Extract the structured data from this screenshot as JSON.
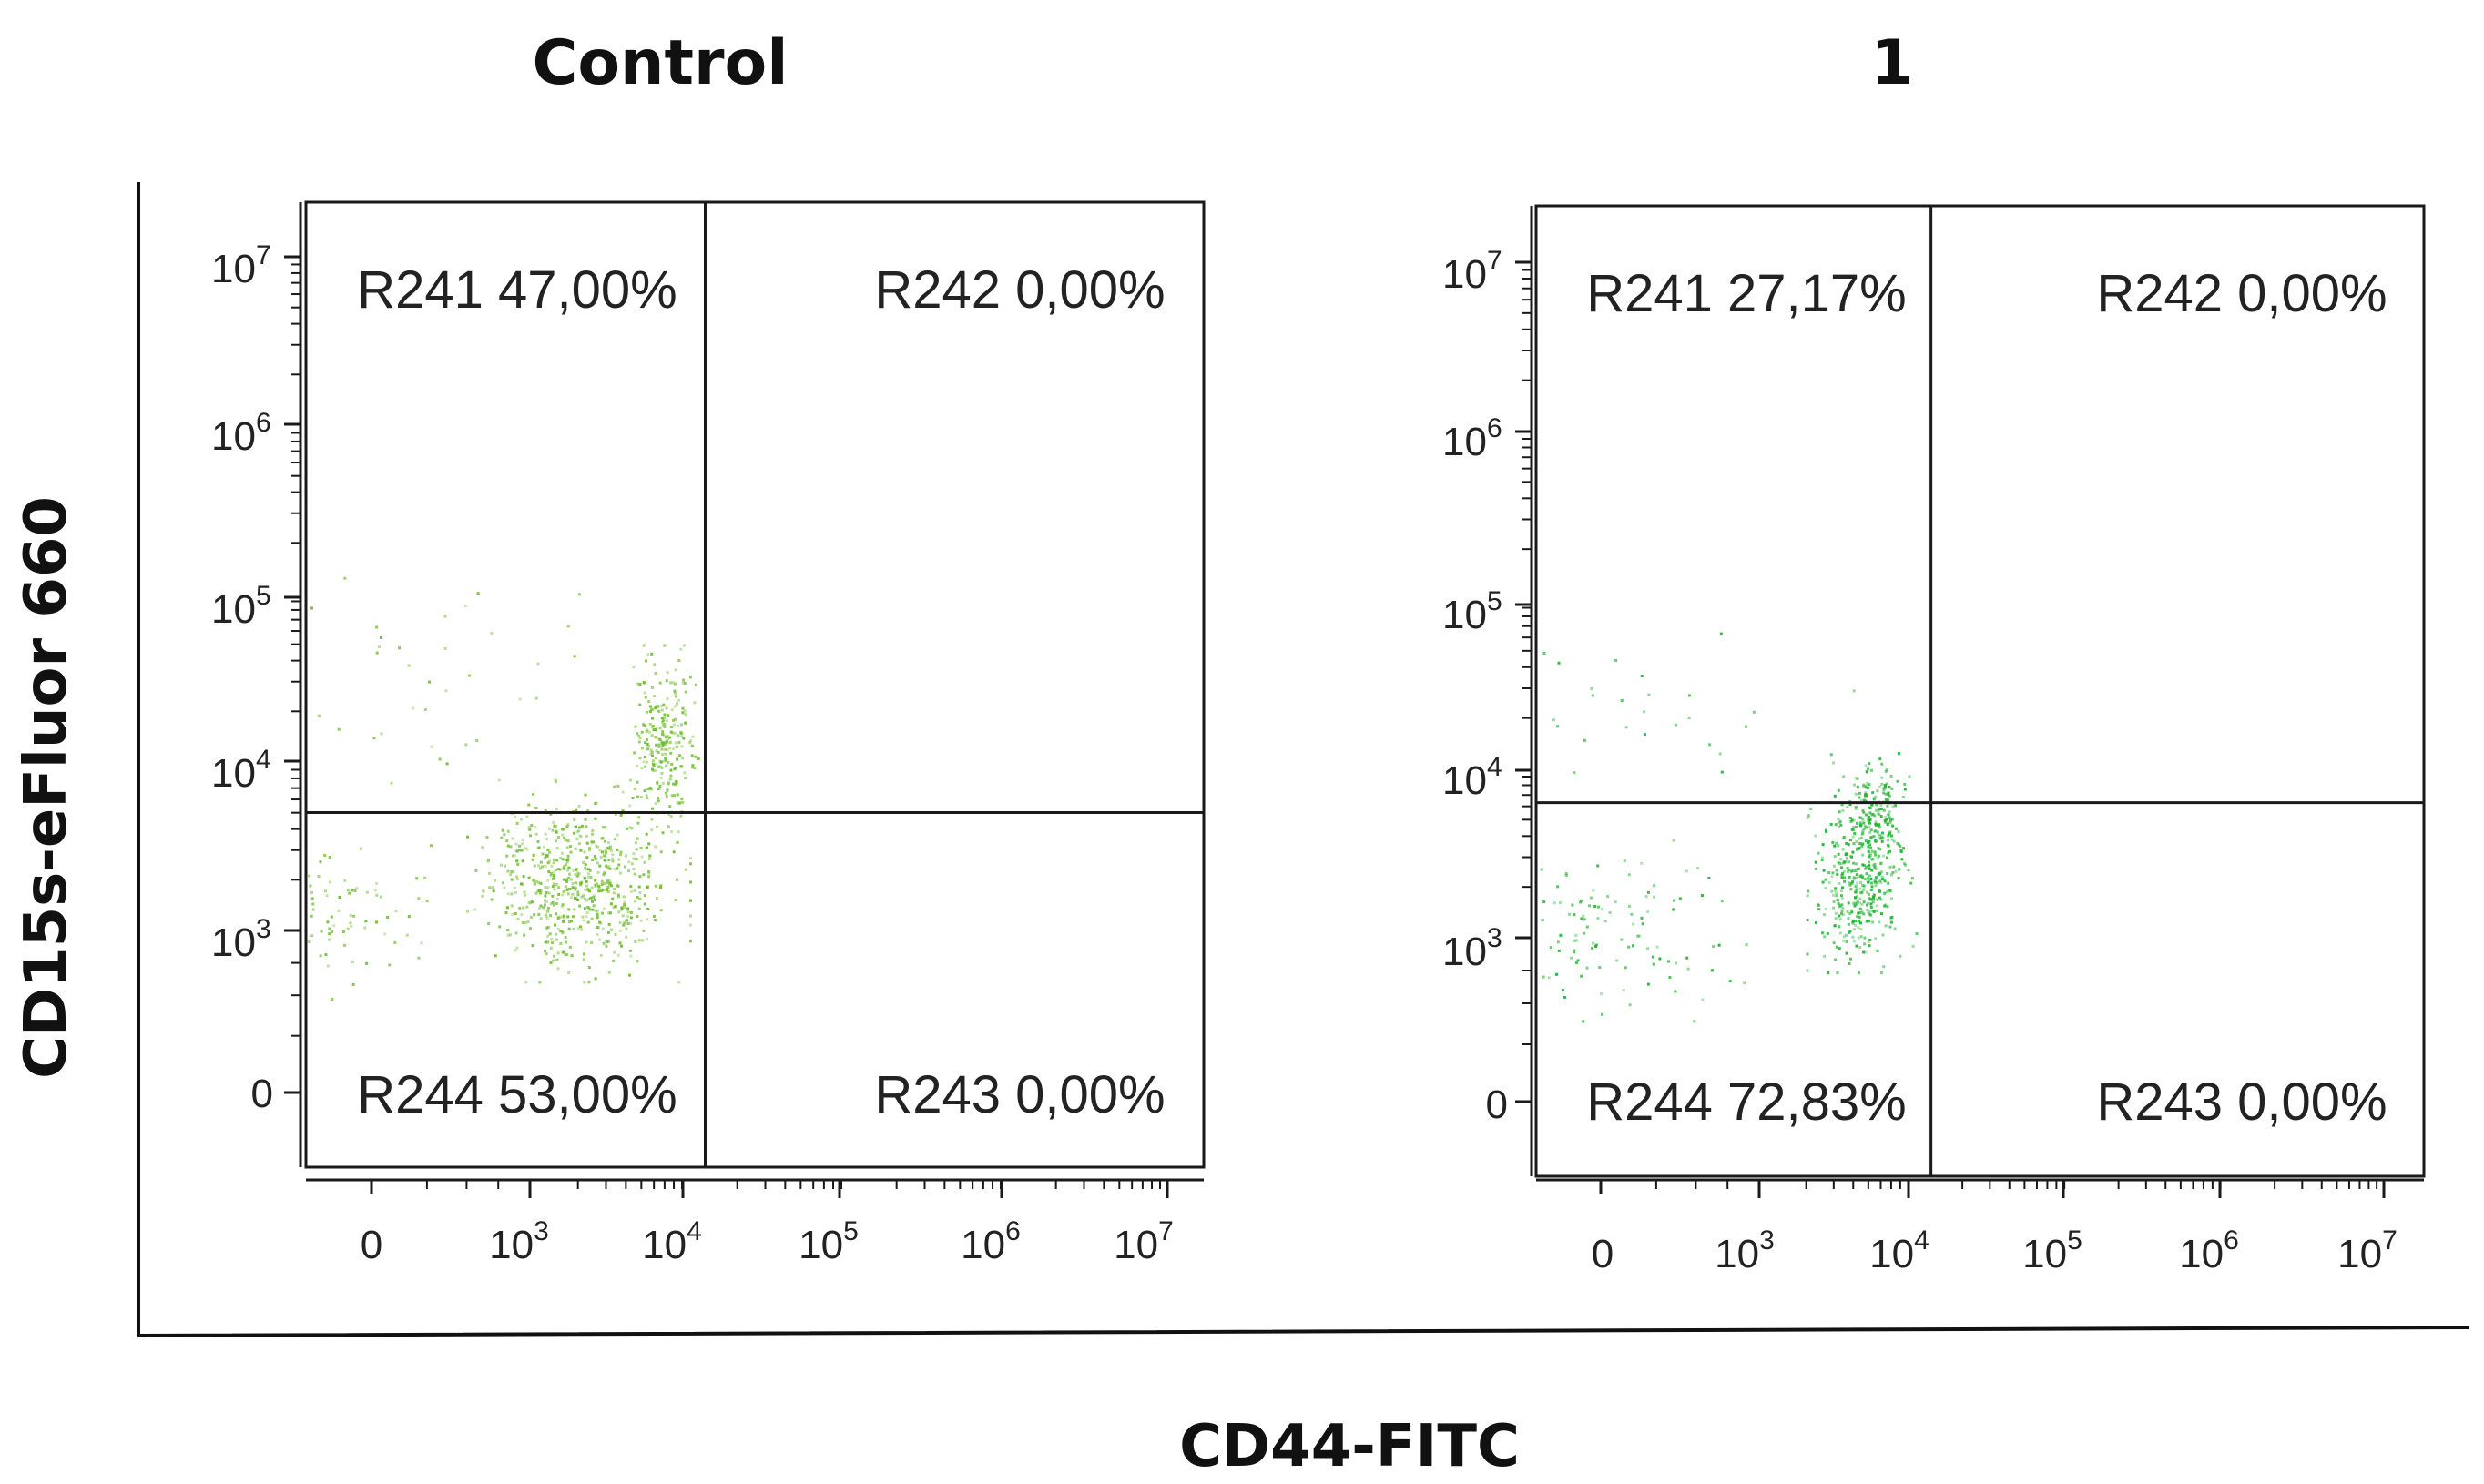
{
  "chart_data": {
    "type": "scatter",
    "figure": {
      "xlabel": "CD44-FITC",
      "ylabel": "CD15s-eFluor 660"
    },
    "panels": [
      {
        "title": "Control",
        "x_scale": "log",
        "y_scale": "log",
        "x_ticks": [
          {
            "base": "0",
            "exp": ""
          },
          {
            "base": "10",
            "exp": "3"
          },
          {
            "base": "10",
            "exp": "4"
          },
          {
            "base": "10",
            "exp": "5"
          },
          {
            "base": "10",
            "exp": "6"
          },
          {
            "base": "10",
            "exp": "7"
          }
        ],
        "y_ticks": [
          {
            "base": "0",
            "exp": ""
          },
          {
            "base": "10",
            "exp": "3"
          },
          {
            "base": "10",
            "exp": "4"
          },
          {
            "base": "10",
            "exp": "5"
          },
          {
            "base": "10",
            "exp": "6"
          },
          {
            "base": "10",
            "exp": "7"
          }
        ],
        "gate_x_log": 4.1,
        "gate_y_log": 3.7,
        "quadrants": [
          {
            "position": "top-left",
            "label": "R241 47,00%",
            "percent": 47.0
          },
          {
            "position": "top-right",
            "label": "R242 0,00%",
            "percent": 0.0
          },
          {
            "position": "bottom-left",
            "label": "R244 53,00%",
            "percent": 53.0
          },
          {
            "position": "bottom-right",
            "label": "R243 0,00%",
            "percent": 0.0
          }
        ],
        "dot_color": "#6cbd2a",
        "clusters": [
          {
            "x_log": [
              2.6,
              4.0
            ],
            "y_log": [
              2.7,
              3.9
            ],
            "count": 650
          },
          {
            "x_log": [
              3.6,
              4.05
            ],
            "y_log": [
              3.5,
              4.7
            ],
            "count": 260
          },
          {
            "x_log": [
              -0.4,
              2.6
            ],
            "y_log": [
              2.6,
              3.6
            ],
            "count": 320
          },
          {
            "x_log": [
              0.5,
              4.0
            ],
            "y_log": [
              3.8,
              5.4
            ],
            "count": 45
          }
        ]
      },
      {
        "title": "1",
        "x_scale": "log",
        "y_scale": "log",
        "x_ticks": [
          {
            "base": "0",
            "exp": ""
          },
          {
            "base": "10",
            "exp": "3"
          },
          {
            "base": "10",
            "exp": "4"
          },
          {
            "base": "10",
            "exp": "5"
          },
          {
            "base": "10",
            "exp": "6"
          },
          {
            "base": "10",
            "exp": "7"
          }
        ],
        "y_ticks": [
          {
            "base": "0",
            "exp": ""
          },
          {
            "base": "10",
            "exp": "3"
          },
          {
            "base": "10",
            "exp": "4"
          },
          {
            "base": "10",
            "exp": "5"
          },
          {
            "base": "10",
            "exp": "6"
          },
          {
            "base": "10",
            "exp": "7"
          }
        ],
        "gate_x_log": 4.1,
        "gate_y_log": 3.8,
        "quadrants": [
          {
            "position": "top-left",
            "label": "R241 27,17%",
            "percent": 27.17
          },
          {
            "position": "top-right",
            "label": "R242 0,00%",
            "percent": 0.0
          },
          {
            "position": "bottom-left",
            "label": "R244 72,83%",
            "percent": 72.83
          },
          {
            "position": "bottom-right",
            "label": "R243 0,00%",
            "percent": 0.0
          }
        ],
        "dot_color": "#1fb530",
        "clusters": [
          {
            "x_log": [
              3.3,
              4.0
            ],
            "y_log": [
              2.8,
              3.9
            ],
            "count": 420
          },
          {
            "x_log": [
              3.5,
              4.0
            ],
            "y_log": [
              3.4,
              4.1
            ],
            "count": 160
          },
          {
            "x_log": [
              -0.4,
              3.3
            ],
            "y_log": [
              2.5,
              3.6
            ],
            "count": 260
          },
          {
            "x_log": [
              0.3,
              4.0
            ],
            "y_log": [
              3.8,
              4.9
            ],
            "count": 35
          }
        ]
      }
    ]
  }
}
